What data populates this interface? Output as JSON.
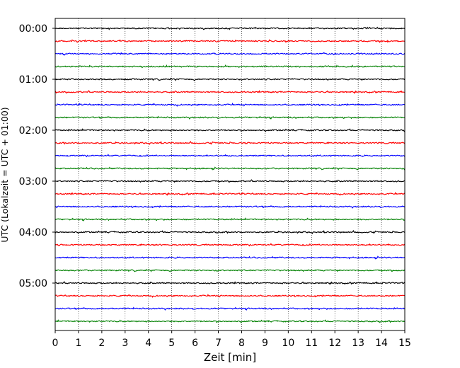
{
  "chart_data": {
    "type": "line",
    "title": "",
    "xlabel": "Zeit  [min]",
    "ylabel": "UTC (Lokalzeit = UTC + 01:00)",
    "xlim": [
      0,
      15
    ],
    "x_ticks": [
      "0",
      "1",
      "2",
      "3",
      "4",
      "5",
      "6",
      "7",
      "8",
      "9",
      "10",
      "11",
      "12",
      "13",
      "14",
      "15"
    ],
    "y_tick_labels": [
      "00:00",
      "01:00",
      "02:00",
      "03:00",
      "04:00",
      "05:00"
    ],
    "grid": "vertical dotted lines at each minute",
    "legend": "none",
    "trace_interval_min": 15,
    "trace_count": 24,
    "color_cycle": [
      "#000000",
      "#ff0000",
      "#0000ff",
      "#008000"
    ],
    "series": [
      {
        "start": "00:00",
        "color": "#000000"
      },
      {
        "start": "00:15",
        "color": "#ff0000"
      },
      {
        "start": "00:30",
        "color": "#0000ff"
      },
      {
        "start": "00:45",
        "color": "#008000"
      },
      {
        "start": "01:00",
        "color": "#000000"
      },
      {
        "start": "01:15",
        "color": "#ff0000"
      },
      {
        "start": "01:30",
        "color": "#0000ff"
      },
      {
        "start": "01:45",
        "color": "#008000"
      },
      {
        "start": "02:00",
        "color": "#000000"
      },
      {
        "start": "02:15",
        "color": "#ff0000"
      },
      {
        "start": "02:30",
        "color": "#0000ff"
      },
      {
        "start": "02:45",
        "color": "#008000"
      },
      {
        "start": "03:00",
        "color": "#000000"
      },
      {
        "start": "03:15",
        "color": "#ff0000"
      },
      {
        "start": "03:30",
        "color": "#0000ff"
      },
      {
        "start": "03:45",
        "color": "#008000"
      },
      {
        "start": "04:00",
        "color": "#000000"
      },
      {
        "start": "04:15",
        "color": "#ff0000"
      },
      {
        "start": "04:30",
        "color": "#0000ff"
      },
      {
        "start": "04:45",
        "color": "#008000"
      },
      {
        "start": "05:00",
        "color": "#000000"
      },
      {
        "start": "05:15",
        "color": "#ff0000"
      },
      {
        "start": "05:30",
        "color": "#0000ff"
      },
      {
        "start": "05:45",
        "color": "#008000"
      }
    ]
  }
}
